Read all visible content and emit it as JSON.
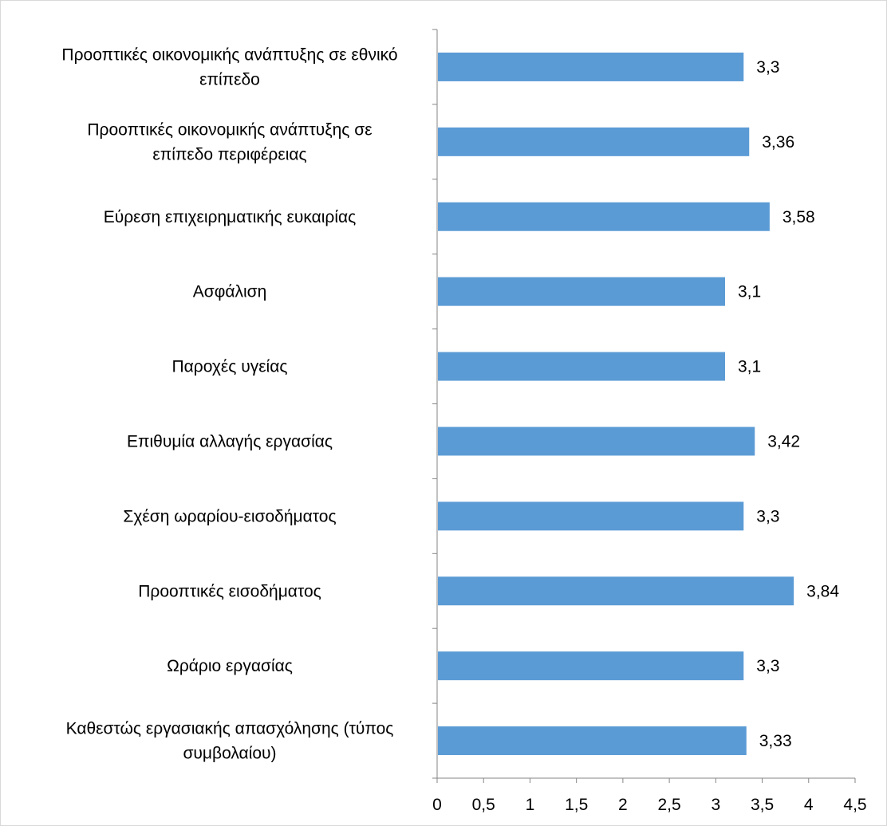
{
  "chart_data": {
    "type": "bar",
    "orientation": "horizontal",
    "title": "",
    "xlabel": "",
    "ylabel": "",
    "xlim": [
      0,
      4.5
    ],
    "x_ticks": [
      0,
      0.5,
      1,
      1.5,
      2,
      2.5,
      3,
      3.5,
      4,
      4.5
    ],
    "x_tick_labels": [
      "0",
      "0,5",
      "1",
      "1,5",
      "2",
      "2,5",
      "3",
      "3,5",
      "4",
      "4,5"
    ],
    "grid": false,
    "legend": "none",
    "bar_color": "#5b9bd5",
    "categories": [
      "Προοπτικές οικονομικής ανάπτυξης σε εθνικό επίπεδο",
      "Προοπτικές οικονομικής ανάπτυξης σε επίπεδο περιφέρειας",
      "Εύρεση επιχειρηματικής ευκαιρίας",
      "Ασφάλιση",
      "Παροχές υγείας",
      "Επιθυμία αλλαγής εργασίας",
      "Σχέση ωραρίου-εισοδήματος",
      "Προοπτικές εισοδήματος",
      "Ωράριο εργασίας",
      "Καθεστώς εργασιακής απασχόλησης (τύπος συμβολαίου)"
    ],
    "category_lines": [
      [
        "Προοπτικές οικονομικής ανάπτυξης σε εθνικό",
        "επίπεδο"
      ],
      [
        "Προοπτικές οικονομικής ανάπτυξης σε",
        "επίπεδο περιφέρειας"
      ],
      [
        "Εύρεση επιχειρηματικής ευκαιρίας"
      ],
      [
        "Ασφάλιση"
      ],
      [
        "Παροχές υγείας"
      ],
      [
        "Επιθυμία αλλαγής εργασίας"
      ],
      [
        "Σχέση ωραρίου-εισοδήματος"
      ],
      [
        "Προοπτικές εισοδήματος"
      ],
      [
        "Ωράριο εργασίας"
      ],
      [
        "Καθεστώς εργασιακής απασχόλησης (τύπος",
        "συμβολαίου)"
      ]
    ],
    "values": [
      3.3,
      3.36,
      3.58,
      3.1,
      3.1,
      3.42,
      3.3,
      3.84,
      3.3,
      3.33
    ],
    "value_labels": [
      "3,3",
      "3,36",
      "3,58",
      "3,1",
      "3,1",
      "3,42",
      "3,3",
      "3,84",
      "3,3",
      "3,33"
    ]
  }
}
